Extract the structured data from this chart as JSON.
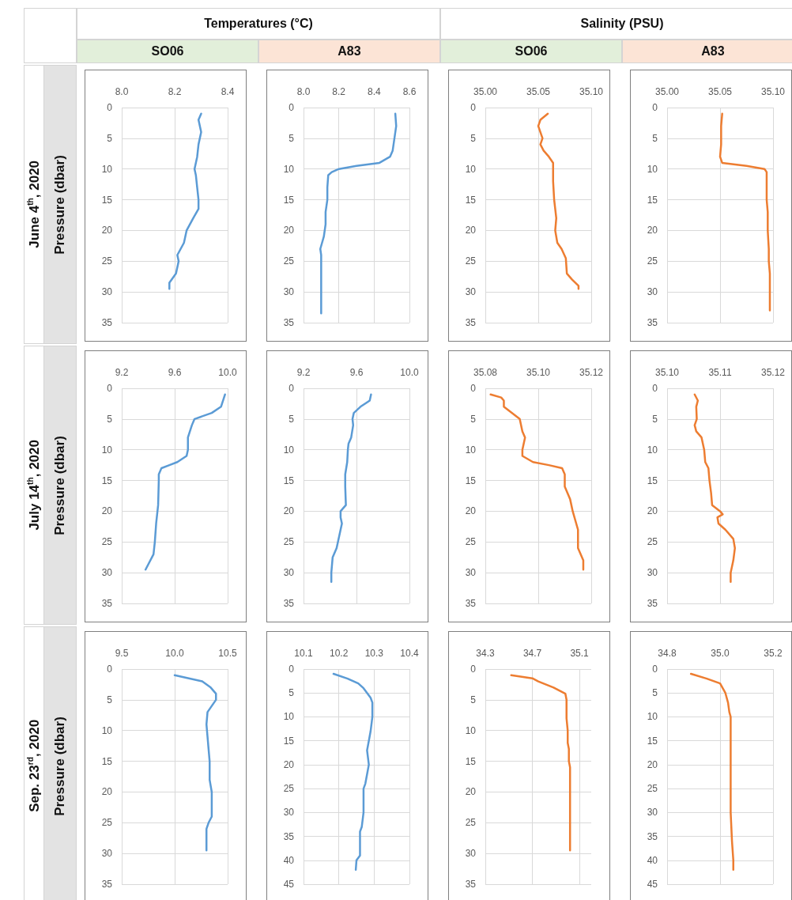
{
  "chart_data": [
    {
      "type": "line",
      "title": "Temperatures (°C)",
      "subtitle": "SO06",
      "ylabel": "Pressure (dbar)",
      "annotations": [
        "June 4$^{th}$, 2020"
      ],
      "xlim": [
        8.0,
        8.4
      ],
      "xticks": [
        {
          "value": 8,
          "label": "8.0"
        },
        8.2,
        8.4
      ],
      "ylim": [
        35,
        0
      ],
      "yticks": [
        0,
        5,
        10,
        15,
        20,
        25,
        30,
        35
      ],
      "grid": true,
      "marker": "none",
      "series": [
        {
          "color": "#5b9bd5",
          "x": [
            8.3,
            8.29,
            8.3,
            8.29,
            8.285,
            8.275,
            8.28,
            8.285,
            8.29,
            8.29,
            8.27,
            8.245,
            8.235,
            8.21,
            8.215,
            8.205,
            8.18,
            8.18
          ],
          "values": [
            1,
            2,
            4,
            6,
            8,
            10,
            11,
            13,
            15,
            16.5,
            18,
            20,
            22,
            24,
            25,
            27,
            28.5,
            29.5
          ]
        }
      ]
    },
    {
      "type": "line",
      "subtitle": "A83",
      "xlim": [
        8.0,
        8.6
      ],
      "xticks": [
        {
          "value": 8,
          "label": "8.0"
        },
        8.2,
        8.4,
        8.6
      ],
      "ylim": [
        35,
        0
      ],
      "yticks": [
        0,
        5,
        10,
        15,
        20,
        25,
        30,
        35
      ],
      "grid": true,
      "marker": "none",
      "series": [
        {
          "color": "#5b9bd5",
          "x": [
            8.52,
            8.525,
            8.515,
            8.505,
            8.49,
            8.43,
            8.3,
            8.2,
            8.16,
            8.14,
            8.135,
            8.135,
            8.125,
            8.125,
            8.115,
            8.105,
            8.095,
            8.1,
            8.1,
            8.1,
            8.1
          ],
          "values": [
            1,
            3,
            5,
            7,
            8,
            9,
            9.5,
            10,
            10.5,
            11,
            13,
            15,
            17,
            19,
            21,
            22,
            23,
            24,
            27,
            30,
            33.5
          ]
        }
      ]
    },
    {
      "type": "line",
      "title": "Salinity (PSU)",
      "subtitle": "SO06",
      "xlim": [
        35.0,
        35.1
      ],
      "xticks": [
        {
          "value": 35,
          "label": "35.00"
        },
        35.05,
        {
          "value": 35.1,
          "label": "35.10"
        }
      ],
      "ylim": [
        35,
        0
      ],
      "yticks": [
        0,
        5,
        10,
        15,
        20,
        25,
        30,
        35
      ],
      "grid": true,
      "marker": "none",
      "series": [
        {
          "color": "#ed7d31",
          "x": [
            35.059,
            35.052,
            35.05,
            35.052,
            35.054,
            35.052,
            35.055,
            35.06,
            35.064,
            35.064,
            35.065,
            35.067,
            35.066,
            35.068,
            35.072,
            35.076,
            35.077,
            35.082,
            35.088,
            35.088
          ],
          "values": [
            1,
            2,
            3,
            4,
            5,
            6,
            7,
            8,
            9,
            12,
            15,
            18,
            20,
            22,
            23,
            24.5,
            27,
            28,
            29,
            29.5
          ]
        }
      ]
    },
    {
      "type": "line",
      "subtitle": "A83",
      "xlim": [
        35.0,
        35.1
      ],
      "xticks": [
        {
          "value": 35,
          "label": "35.00"
        },
        35.05,
        {
          "value": 35.1,
          "label": "35.10"
        }
      ],
      "ylim": [
        35,
        0
      ],
      "yticks": [
        0,
        5,
        10,
        15,
        20,
        25,
        30,
        35
      ],
      "grid": true,
      "marker": "none",
      "series": [
        {
          "color": "#ed7d31",
          "x": [
            35.052,
            35.051,
            35.051,
            35.05,
            35.052,
            35.075,
            35.092,
            35.094,
            35.094,
            35.094,
            35.095,
            35.095,
            35.096,
            35.096,
            35.097,
            35.097,
            35.097
          ],
          "values": [
            1,
            3,
            6,
            8,
            9,
            9.5,
            10,
            10.5,
            11,
            15,
            17,
            20,
            23,
            25,
            27,
            30,
            33
          ]
        }
      ]
    },
    {
      "type": "line",
      "ylabel": "Pressure (dbar)",
      "annotations": [
        "July 14$^{th}$, 2020"
      ],
      "xlim": [
        9.2,
        10.0
      ],
      "xticks": [
        9.2,
        9.6,
        {
          "value": 10,
          "label": "10.0"
        }
      ],
      "ylim": [
        35,
        0
      ],
      "yticks": [
        0,
        5,
        10,
        15,
        20,
        25,
        30,
        35
      ],
      "grid": true,
      "marker": "none",
      "series": [
        {
          "color": "#5b9bd5",
          "x": [
            9.98,
            9.965,
            9.95,
            9.88,
            9.75,
            9.73,
            9.7,
            9.7,
            9.69,
            9.62,
            9.56,
            9.5,
            9.48,
            9.48,
            9.475,
            9.47,
            9.46,
            9.45,
            9.44,
            9.38
          ],
          "values": [
            1,
            2,
            3,
            4,
            5,
            6,
            8,
            10,
            11,
            12,
            12.5,
            13,
            14,
            15,
            19,
            20,
            22,
            25,
            27,
            29.5
          ]
        }
      ]
    },
    {
      "type": "line",
      "xlim": [
        9.2,
        10.0
      ],
      "xticks": [
        9.2,
        9.6,
        {
          "value": 10,
          "label": "10.0"
        }
      ],
      "ylim": [
        35,
        0
      ],
      "yticks": [
        0,
        5,
        10,
        15,
        20,
        25,
        30,
        35
      ],
      "grid": true,
      "marker": "none",
      "series": [
        {
          "color": "#5b9bd5",
          "x": [
            9.71,
            9.7,
            9.63,
            9.58,
            9.57,
            9.575,
            9.56,
            9.54,
            9.535,
            9.53,
            9.515,
            9.515,
            9.52,
            9.48,
            9.48,
            9.49,
            9.47,
            9.45,
            9.42,
            9.41,
            9.41
          ],
          "values": [
            1,
            2,
            3,
            4,
            5,
            6,
            8,
            9,
            10,
            12,
            14,
            16,
            19,
            20,
            21,
            22,
            24,
            26,
            27.5,
            30,
            31.5
          ]
        }
      ]
    },
    {
      "type": "line",
      "xlim": [
        35.08,
        35.12
      ],
      "xticks": [
        35.08,
        {
          "value": 35.1,
          "label": "35.10"
        },
        35.12
      ],
      "ylim": [
        35,
        0
      ],
      "yticks": [
        0,
        5,
        10,
        15,
        20,
        25,
        30,
        35
      ],
      "grid": true,
      "marker": "none",
      "series": [
        {
          "color": "#ed7d31",
          "x": [
            35.082,
            35.086,
            35.087,
            35.087,
            35.09,
            35.093,
            35.094,
            35.095,
            35.094,
            35.094,
            35.098,
            35.104,
            35.109,
            35.11,
            35.11,
            35.112,
            35.113,
            35.115,
            35.115,
            35.116,
            35.117,
            35.117
          ],
          "values": [
            1,
            1.5,
            2,
            3,
            4,
            5,
            7,
            8,
            10,
            11,
            12,
            12.5,
            13,
            14,
            16,
            18,
            20,
            23,
            26,
            27,
            28,
            29.5
          ]
        }
      ]
    },
    {
      "type": "line",
      "xlim": [
        35.1,
        35.12
      ],
      "xticks": [
        {
          "value": 35.1,
          "label": "35.10"
        },
        35.11,
        35.12
      ],
      "ylim": [
        35,
        0
      ],
      "yticks": [
        0,
        5,
        10,
        15,
        20,
        25,
        30,
        35
      ],
      "grid": true,
      "marker": "none",
      "series": [
        {
          "color": "#ed7d31",
          "x": [
            35.1052,
            35.1058,
            35.1055,
            35.1056,
            35.1052,
            35.1055,
            35.1065,
            35.107,
            35.1072,
            35.1078,
            35.108,
            35.1083,
            35.1085,
            35.11,
            35.1105,
            35.1095,
            35.1097,
            35.111,
            35.1125,
            35.1128,
            35.1125,
            35.112,
            35.112
          ],
          "values": [
            1,
            2,
            3,
            5,
            6,
            7,
            8,
            10,
            12,
            13,
            15,
            17,
            19,
            20,
            20.5,
            21,
            22,
            23,
            24.5,
            26,
            28,
            30,
            31.5
          ]
        }
      ]
    },
    {
      "type": "line",
      "ylabel": "Pressure (dbar)",
      "annotations": [
        "Sep. 23$^{rd}$, 2020"
      ],
      "xlim": [
        9.5,
        10.5
      ],
      "xticks": [
        9.5,
        {
          "value": 10,
          "label": "10.0"
        },
        10.5
      ],
      "ylim": [
        35,
        0
      ],
      "yticks": [
        0,
        5,
        10,
        15,
        20,
        25,
        30,
        35
      ],
      "grid": true,
      "marker": "none",
      "series": [
        {
          "color": "#5b9bd5",
          "x": [
            10.0,
            10.26,
            10.34,
            10.39,
            10.39,
            10.35,
            10.31,
            10.3,
            10.31,
            10.32,
            10.33,
            10.33,
            10.35,
            10.35,
            10.32,
            10.3,
            10.3
          ],
          "values": [
            1,
            2,
            3,
            4,
            5,
            6,
            7,
            9,
            11,
            13,
            15,
            18,
            20,
            24,
            25,
            26,
            29.5
          ]
        }
      ]
    },
    {
      "type": "line",
      "xlim": [
        10.1,
        10.4
      ],
      "xticks": [
        10.1,
        10.2,
        10.3,
        10.4
      ],
      "ylim": [
        45,
        0
      ],
      "yticks": [
        0,
        5,
        10,
        15,
        20,
        25,
        30,
        35,
        40,
        45
      ],
      "grid": true,
      "marker": "none",
      "series": [
        {
          "color": "#5b9bd5",
          "x": [
            10.185,
            10.225,
            10.255,
            10.27,
            10.28,
            10.29,
            10.295,
            10.295,
            10.29,
            10.285,
            10.28,
            10.285,
            10.28,
            10.275,
            10.27,
            10.27,
            10.265,
            10.26,
            10.26,
            10.25,
            10.248
          ],
          "values": [
            1,
            2,
            3,
            4,
            5,
            6,
            7,
            10,
            13,
            15,
            17,
            20,
            22,
            24,
            25,
            30,
            33,
            34,
            39,
            40,
            42
          ]
        }
      ]
    },
    {
      "type": "line",
      "xlim": [
        34.3,
        35.2
      ],
      "xticks": [
        34.3,
        34.7,
        35.1
      ],
      "ylim": [
        35,
        0
      ],
      "yticks": [
        0,
        5,
        10,
        15,
        20,
        25,
        30,
        35
      ],
      "grid": true,
      "marker": "none",
      "series": [
        {
          "color": "#ed7d31",
          "x": [
            34.52,
            34.7,
            34.75,
            34.88,
            34.98,
            34.99,
            34.99,
            35.0,
            35.0,
            35.01,
            35.01,
            35.02,
            35.02,
            35.02,
            35.02
          ],
          "values": [
            1,
            1.5,
            2,
            3,
            4,
            5,
            8,
            10,
            12,
            13,
            15,
            16,
            20,
            25,
            29.5
          ]
        }
      ]
    },
    {
      "type": "line",
      "xlim": [
        34.8,
        35.2
      ],
      "xticks": [
        34.8,
        {
          "value": 35,
          "label": "35.0"
        },
        35.2
      ],
      "ylim": [
        45,
        0
      ],
      "yticks": [
        0,
        5,
        10,
        15,
        20,
        25,
        30,
        35,
        40,
        45
      ],
      "grid": true,
      "marker": "none",
      "series": [
        {
          "color": "#ed7d31",
          "x": [
            34.89,
            34.95,
            35.0,
            35.01,
            35.02,
            35.03,
            35.035,
            35.04,
            35.04,
            35.04,
            35.04,
            35.045,
            35.05,
            35.05
          ],
          "values": [
            1,
            2,
            3,
            4,
            5,
            7,
            9,
            10,
            14,
            20,
            30,
            36,
            40,
            42
          ]
        }
      ]
    }
  ]
}
